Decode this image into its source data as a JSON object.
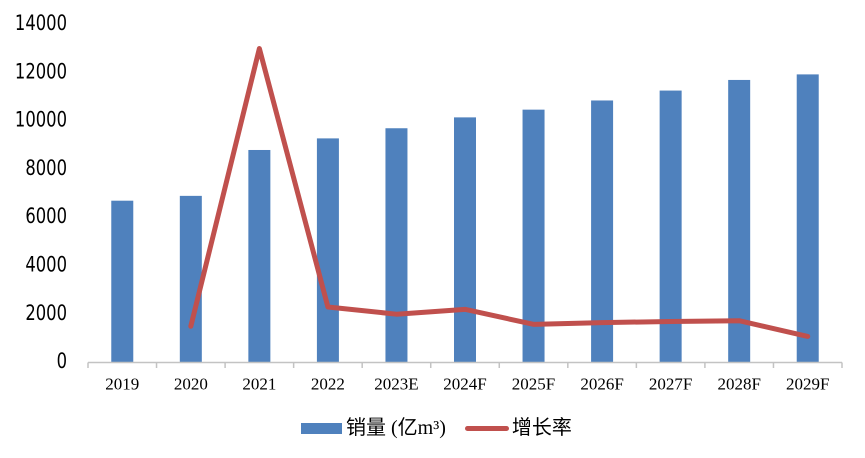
{
  "chart_data": {
    "type": "bar+line",
    "categories": [
      "2019",
      "2020",
      "2021",
      "2022",
      "2023E",
      "2024F",
      "2025F",
      "2026F",
      "2027F",
      "2028F",
      "2029F"
    ],
    "series": [
      {
        "name": "销量 (亿m³)",
        "type": "bar",
        "color": "#4f81bd",
        "values": [
          6700,
          6900,
          8800,
          9280,
          9700,
          10150,
          10470,
          10850,
          11260,
          11700,
          11930
        ]
      },
      {
        "name": "增长率",
        "type": "line",
        "color": "#c0504d",
        "values": [
          null,
          1500,
          13000,
          2300,
          2000,
          2200,
          1580,
          1650,
          1700,
          1730,
          1080
        ],
        "note": "values as plotted against the primary axis; no secondary axis shown"
      }
    ],
    "title": "",
    "xlabel": "",
    "ylabel": "",
    "ylim": [
      0,
      14000
    ],
    "y_tick_step": 2000,
    "y_tick_labels": [
      "0",
      "2000",
      "4000",
      "6000",
      "8000",
      "10000",
      "12000",
      "14000"
    ],
    "grid": false,
    "legend_position": "bottom",
    "axis_color": "#c3c3c3"
  },
  "legend": {
    "bar_label": "销量 (亿m³)",
    "line_label": "增长率"
  }
}
